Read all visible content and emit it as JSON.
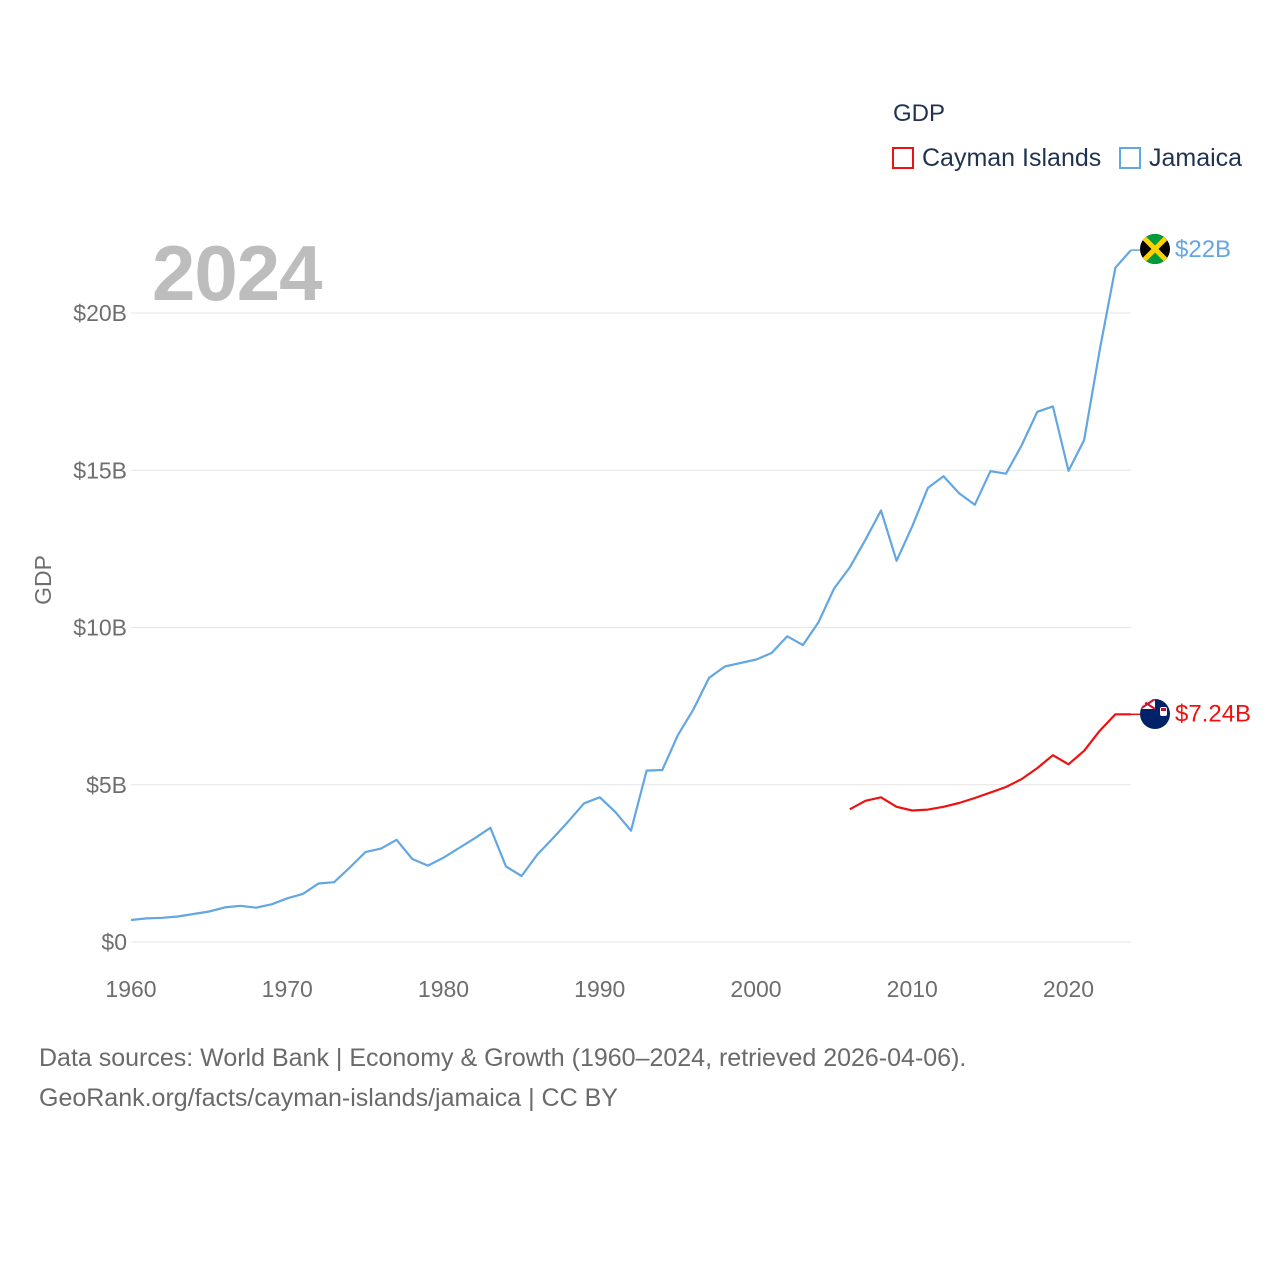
{
  "legend": {
    "title": "GDP",
    "items": [
      {
        "label": "Cayman Islands",
        "color": "#ee1111"
      },
      {
        "label": "Jamaica",
        "color": "#62a6e2"
      }
    ]
  },
  "year_label": "2024",
  "source_lines": [
    "Data sources: World Bank | Economy & Growth (1960–2024, retrieved 2026-04-06).",
    "GeoRank.org/facts/cayman-islands/jamaica | CC BY"
  ],
  "chart_data": {
    "type": "line",
    "title": "GDP",
    "xlabel": "",
    "ylabel": "GDP",
    "xlim": [
      1960,
      2024
    ],
    "ylim": [
      0,
      20000000000
    ],
    "grid": true,
    "x_ticks": [
      1960,
      1970,
      1980,
      1990,
      2000,
      2010,
      2020
    ],
    "x_tick_labels": [
      "1960",
      "1970",
      "1980",
      "1990",
      "2000",
      "2010",
      "2020"
    ],
    "y_ticks": [
      0,
      5000000000,
      10000000000,
      15000000000,
      20000000000
    ],
    "y_tick_labels": [
      "$0",
      "$5B",
      "$10B",
      "$15B",
      "$20B"
    ],
    "legend_position": "top-right",
    "series": [
      {
        "name": "Jamaica",
        "color": "#62a6e2",
        "end_label": "$22B",
        "x": [
          1960,
          1961,
          1962,
          1963,
          1964,
          1965,
          1966,
          1967,
          1968,
          1969,
          1970,
          1971,
          1972,
          1973,
          1974,
          1975,
          1976,
          1977,
          1978,
          1979,
          1980,
          1981,
          1982,
          1983,
          1984,
          1985,
          1986,
          1987,
          1988,
          1989,
          1990,
          1991,
          1992,
          1993,
          1994,
          1995,
          1996,
          1997,
          1998,
          1999,
          2000,
          2001,
          2002,
          2003,
          2004,
          2005,
          2006,
          2007,
          2008,
          2009,
          2010,
          2011,
          2012,
          2013,
          2014,
          2015,
          2016,
          2017,
          2018,
          2019,
          2020,
          2021,
          2022,
          2023,
          2024
        ],
        "values": [
          0.7,
          0.75,
          0.77,
          0.81,
          0.89,
          0.97,
          1.1,
          1.15,
          1.09,
          1.2,
          1.39,
          1.53,
          1.86,
          1.9,
          2.37,
          2.86,
          2.97,
          3.25,
          2.64,
          2.43,
          2.68,
          2.99,
          3.3,
          3.63,
          2.4,
          2.1,
          2.78,
          3.3,
          3.84,
          4.41,
          4.6,
          4.13,
          3.54,
          5.45,
          5.47,
          6.58,
          7.4,
          8.4,
          8.76,
          8.87,
          8.98,
          9.19,
          9.72,
          9.44,
          10.17,
          11.24,
          11.91,
          12.79,
          13.72,
          12.12,
          13.22,
          14.44,
          14.81,
          14.27,
          13.9,
          14.97,
          14.89,
          15.79,
          16.86,
          17.03,
          14.98,
          15.96,
          18.84,
          21.44,
          22.0
        ]
      },
      {
        "name": "Cayman Islands",
        "color": "#ee1111",
        "end_label": "$7.24B",
        "x": [
          2006,
          2007,
          2008,
          2009,
          2010,
          2011,
          2012,
          2013,
          2014,
          2015,
          2016,
          2017,
          2018,
          2019,
          2020,
          2021,
          2022,
          2023,
          2024
        ],
        "values": [
          4.22,
          4.49,
          4.6,
          4.3,
          4.18,
          4.21,
          4.3,
          4.42,
          4.58,
          4.75,
          4.93,
          5.18,
          5.53,
          5.94,
          5.65,
          6.08,
          6.72,
          7.24,
          7.24
        ]
      }
    ]
  }
}
